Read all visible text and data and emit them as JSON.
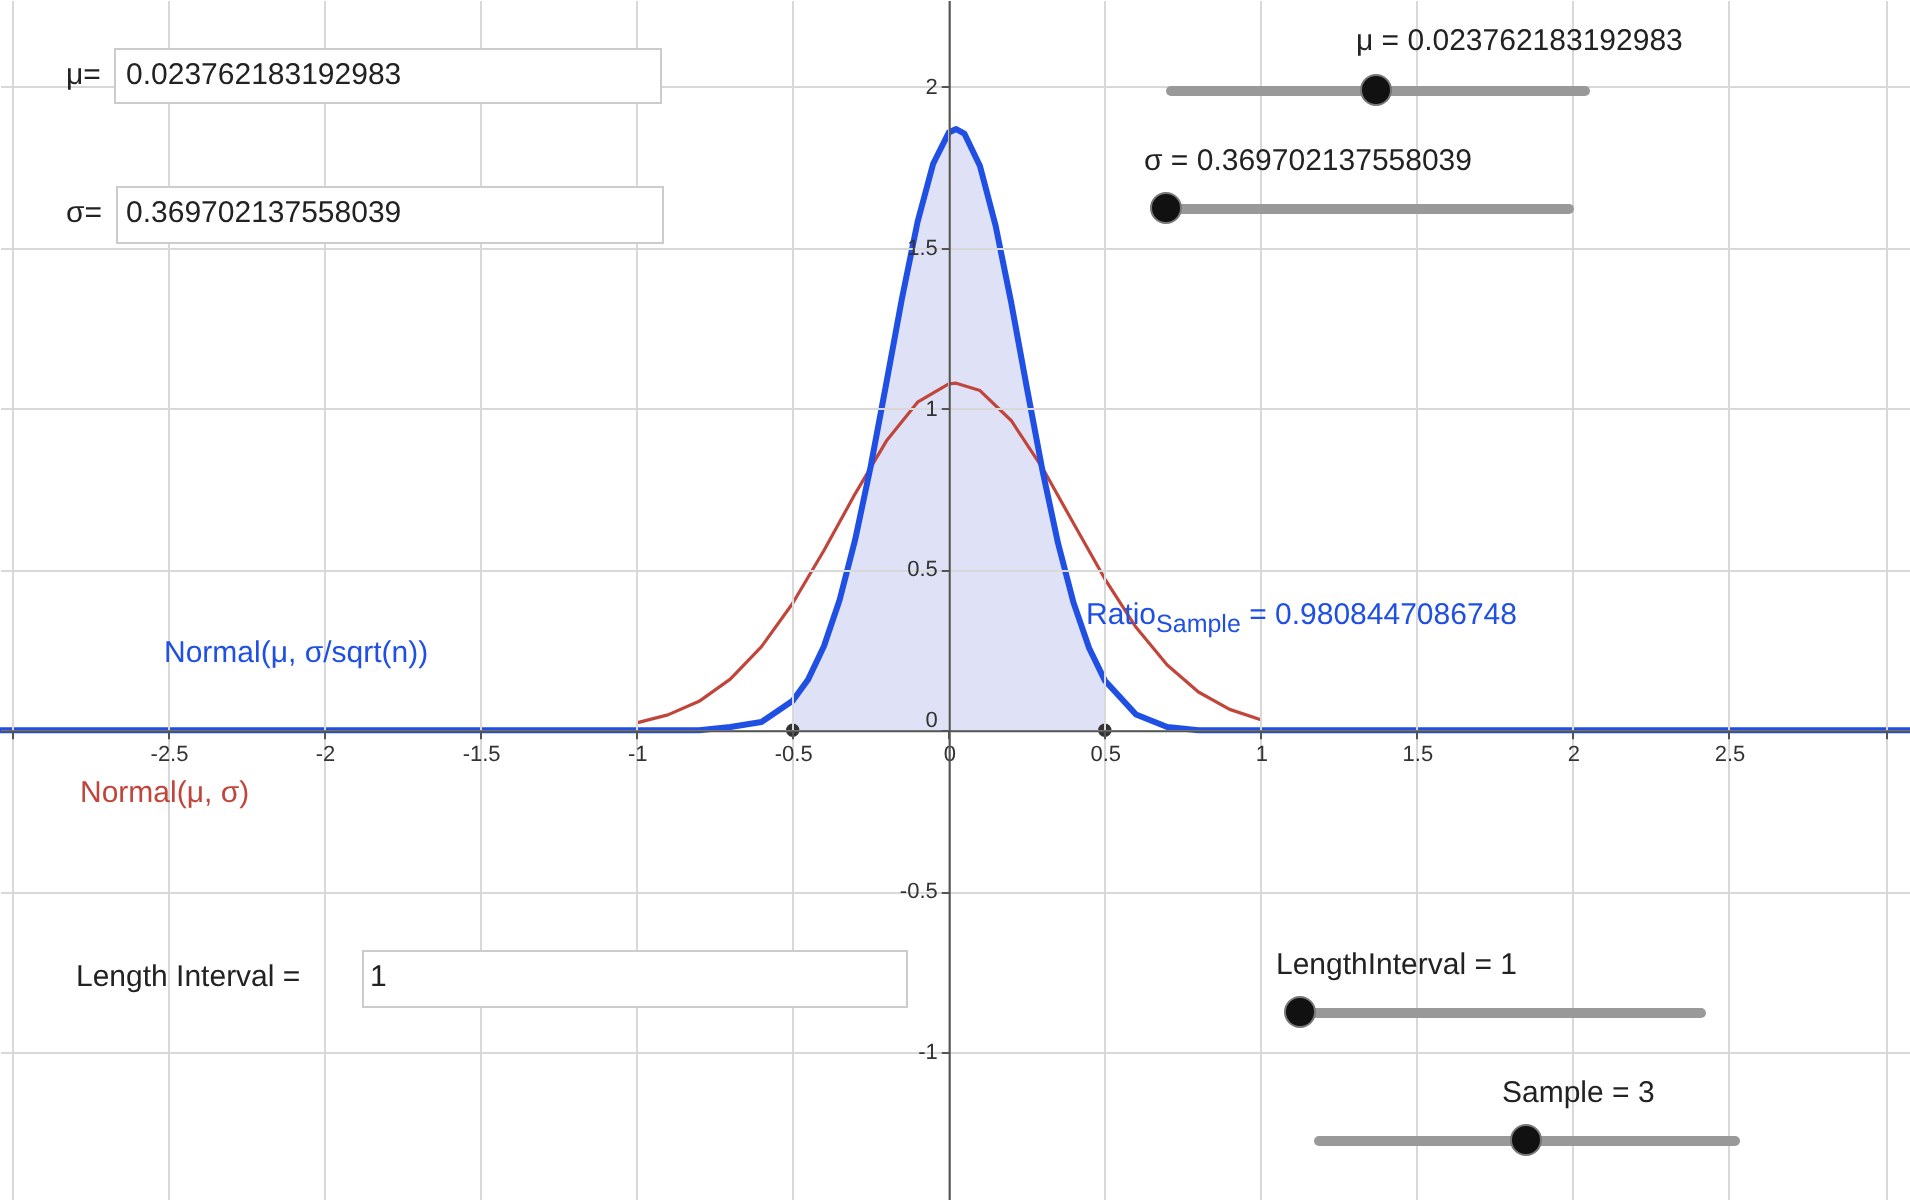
{
  "chart_data": {
    "type": "line",
    "xlim": [
      -3.04,
      3.08
    ],
    "ylim": [
      -1.46,
      2.27
    ],
    "xticks": [
      {
        "value": -3,
        "label": null
      },
      -2.5,
      -2,
      -1.5,
      -1,
      -0.5,
      0,
      0.5,
      1,
      1.5,
      2,
      2.5,
      {
        "value": 3,
        "label": null
      }
    ],
    "yticks": [
      -1,
      -0.5,
      0,
      0.5,
      1,
      1.5,
      2
    ],
    "grid": true,
    "series": [
      {
        "type": "area",
        "color": "#dfe1f7",
        "x": [
          -0.5,
          -0.45,
          -0.4,
          -0.35,
          -0.3,
          -0.25,
          -0.2,
          -0.15,
          -0.1,
          -0.05,
          0,
          0.0238,
          0.05,
          0.1,
          0.15,
          0.2,
          0.25,
          0.3,
          0.35,
          0.4,
          0.45,
          0.5
        ],
        "values": [
          0.092,
          0.159,
          0.261,
          0.404,
          0.592,
          0.821,
          1.079,
          1.342,
          1.58,
          1.761,
          1.858,
          1.869,
          1.855,
          1.754,
          1.569,
          1.33,
          1.066,
          0.809,
          0.582,
          0.396,
          0.255,
          0.155
        ]
      },
      {
        "name": "Normal(μ, σ)",
        "color": "#c0463c",
        "x": [
          -1,
          -0.9,
          -0.8,
          -0.7,
          -0.6,
          -0.5,
          -0.4,
          -0.3,
          -0.2,
          -0.1,
          0,
          0.0238,
          0.1,
          0.2,
          0.3,
          0.4,
          0.5,
          0.6,
          0.7,
          0.8,
          0.9,
          1
        ],
        "values": [
          0.023,
          0.048,
          0.09,
          0.159,
          0.26,
          0.395,
          0.559,
          0.735,
          0.899,
          1.02,
          1.077,
          1.079,
          1.056,
          0.963,
          0.816,
          0.643,
          0.471,
          0.32,
          0.203,
          0.119,
          0.065,
          0.033
        ]
      },
      {
        "name": "Normal(μ, σ/sqrt(n))",
        "color": "#1f4fe3",
        "x": [
          -3.04,
          -1,
          -0.8,
          -0.7,
          -0.6,
          -0.5,
          -0.45,
          -0.4,
          -0.35,
          -0.3,
          -0.25,
          -0.2,
          -0.15,
          -0.1,
          -0.05,
          0,
          0.0238,
          0.05,
          0.1,
          0.15,
          0.2,
          0.25,
          0.3,
          0.35,
          0.4,
          0.45,
          0.5,
          0.6,
          0.7,
          0.8,
          1,
          3.08
        ],
        "values": [
          0,
          0,
          0,
          0.01,
          0.026,
          0.092,
          0.159,
          0.261,
          0.404,
          0.592,
          0.821,
          1.079,
          1.342,
          1.58,
          1.761,
          1.858,
          1.869,
          1.855,
          1.754,
          1.569,
          1.33,
          1.066,
          0.809,
          0.582,
          0.396,
          0.255,
          0.155,
          0.049,
          0.01,
          0,
          0,
          0
        ]
      },
      {
        "type": "scatter",
        "marker": "circle",
        "color": "#333333",
        "x": [
          -0.5,
          0.5
        ],
        "values": [
          0,
          0
        ]
      }
    ],
    "annotations": [
      "μ=",
      "0.023762183192983",
      "σ=",
      "0.369702137558039",
      "μ = 0.023762183192983",
      "σ = 0.369702137558039",
      "Ratio$_{Sample}$ = 0.9808447086748",
      "Length Interval =",
      "1",
      "LengthInterval = 1",
      "Sample = 3"
    ]
  }
}
